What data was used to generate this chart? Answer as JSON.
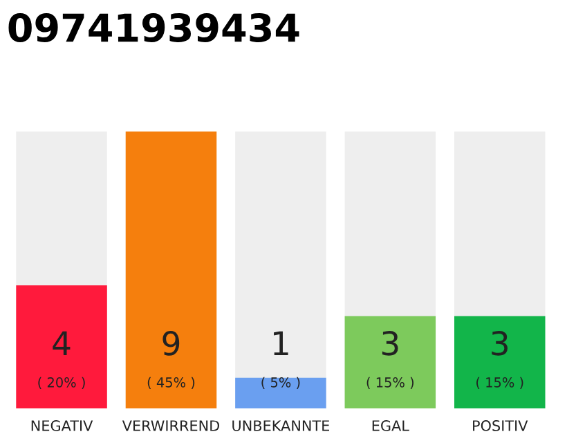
{
  "chart_data": {
    "type": "bar",
    "title": "09741939434",
    "categories": [
      "NEGATIV",
      "VERWIRREND",
      "UNBEKANNTE",
      "EGAL",
      "POSITIV"
    ],
    "values": [
      4,
      9,
      1,
      3,
      3
    ],
    "colors": [
      "#ff1a3c",
      "#f57f0d",
      "#6a9ff0",
      "#7dca5c",
      "#12b54a"
    ],
    "value_labels": [
      "4\n( 20% )",
      "9\n( 45% )",
      "1\n( 5% )",
      "3\n( 15% )",
      "3\n( 15% )"
    ],
    "grid": false,
    "legend": false
  }
}
